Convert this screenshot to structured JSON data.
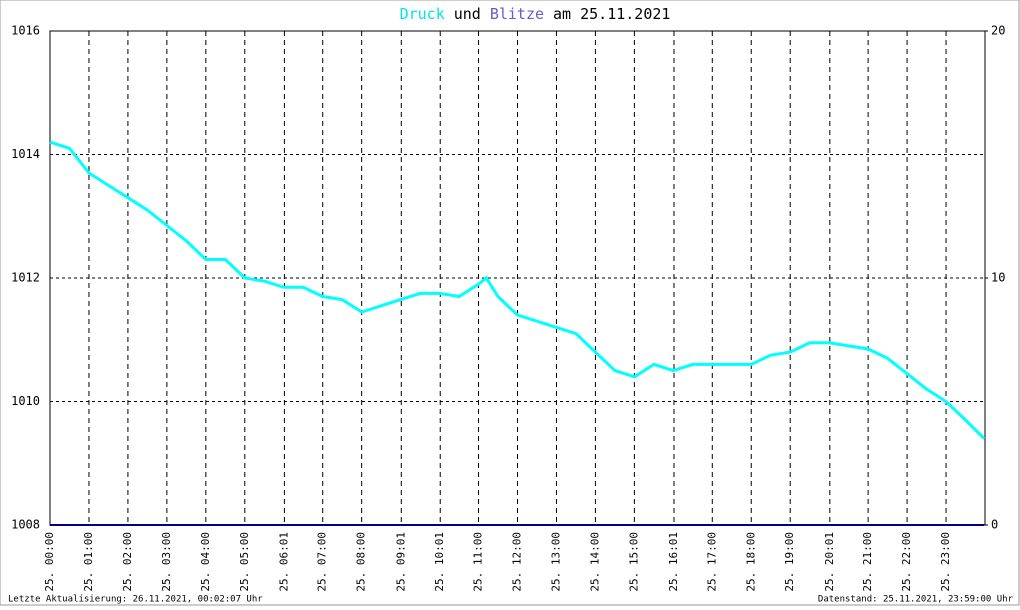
{
  "chart_data": {
    "type": "line",
    "title_parts": [
      {
        "text": "Druck",
        "color": "#00e5e5"
      },
      {
        "text": "und",
        "color": "#000000"
      },
      {
        "text": "Blitze",
        "color": "#6a5acd"
      },
      {
        "text": "am 25.11.2021",
        "color": "#000000"
      }
    ],
    "footer_left": "Letzte Aktualisierung: 26.11.2021, 00:02:07 Uhr",
    "footer_right": "Datenstand: 25.11.2021, 23:59:00 Uhr",
    "xlim": [
      0,
      24
    ],
    "xticks": [
      {
        "value": 0,
        "label": "25. 00:00"
      },
      {
        "value": 1,
        "label": "25. 01:00"
      },
      {
        "value": 2,
        "label": "25. 02:00"
      },
      {
        "value": 3,
        "label": "25. 03:00"
      },
      {
        "value": 4,
        "label": "25. 04:00"
      },
      {
        "value": 5,
        "label": "25. 05:00"
      },
      {
        "value": 6.0167,
        "label": "25. 06:01"
      },
      {
        "value": 7,
        "label": "25. 07:00"
      },
      {
        "value": 8,
        "label": "25. 08:00"
      },
      {
        "value": 9.0167,
        "label": "25. 09:01"
      },
      {
        "value": 10.0167,
        "label": "25. 10:01"
      },
      {
        "value": 11,
        "label": "25. 11:00"
      },
      {
        "value": 12,
        "label": "25. 12:00"
      },
      {
        "value": 13,
        "label": "25. 13:00"
      },
      {
        "value": 14,
        "label": "25. 14:00"
      },
      {
        "value": 15,
        "label": "25. 15:00"
      },
      {
        "value": 16.0167,
        "label": "25. 16:01"
      },
      {
        "value": 17,
        "label": "25. 17:00"
      },
      {
        "value": 18,
        "label": "25. 18:00"
      },
      {
        "value": 19,
        "label": "25. 19:00"
      },
      {
        "value": 20.0167,
        "label": "25. 20:01"
      },
      {
        "value": 21,
        "label": "25. 21:00"
      },
      {
        "value": 22,
        "label": "25. 22:00"
      },
      {
        "value": 23,
        "label": "25. 23:00"
      }
    ],
    "ylim": [
      1008,
      1016
    ],
    "yticks": [
      1008,
      1010,
      1012,
      1014,
      1016
    ],
    "y2lim": [
      0,
      20
    ],
    "y2ticks": [
      0,
      10,
      20
    ],
    "grid": true,
    "series": [
      {
        "name": "Druck",
        "color": "#00ffff",
        "x": [
          0,
          0.5,
          1,
          1.5,
          2,
          2.5,
          3,
          3.5,
          4,
          4.5,
          5,
          5.5,
          6,
          6.5,
          7,
          7.5,
          8,
          8.5,
          9,
          9.5,
          10,
          10.5,
          11,
          11.2,
          11.5,
          12,
          12.5,
          13,
          13.5,
          14,
          14.5,
          15,
          15.5,
          16,
          16.5,
          17,
          17.5,
          18,
          18.5,
          19,
          19.5,
          20,
          20.5,
          21,
          21.5,
          22,
          22.5,
          23,
          23.5,
          23.98
        ],
        "values": [
          1014.2,
          1014.1,
          1013.7,
          1013.5,
          1013.3,
          1013.1,
          1012.85,
          1012.6,
          1012.3,
          1012.3,
          1012.0,
          1011.95,
          1011.85,
          1011.85,
          1011.7,
          1011.65,
          1011.45,
          1011.55,
          1011.65,
          1011.75,
          1011.75,
          1011.7,
          1011.9,
          1012.0,
          1011.7,
          1011.4,
          1011.3,
          1011.2,
          1011.1,
          1010.8,
          1010.5,
          1010.4,
          1010.6,
          1010.5,
          1010.6,
          1010.6,
          1010.6,
          1010.6,
          1010.75,
          1010.8,
          1010.95,
          1010.95,
          1010.9,
          1010.85,
          1010.7,
          1010.45,
          1010.2,
          1010.0,
          1009.7,
          1009.4
        ]
      },
      {
        "name": "Blitze",
        "color": "#000080",
        "axis": "y2",
        "x": [
          0,
          23.98
        ],
        "values": [
          0,
          0
        ]
      }
    ]
  }
}
